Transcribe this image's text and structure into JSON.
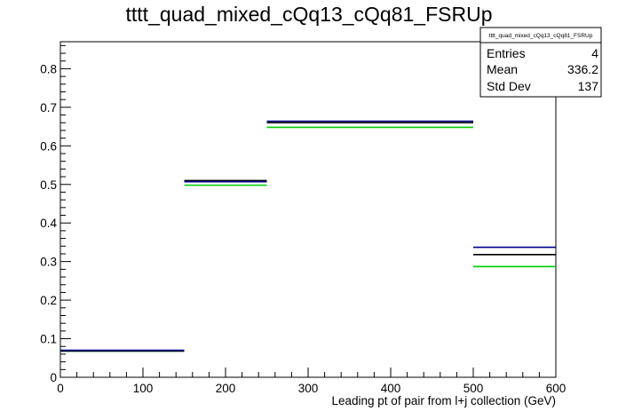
{
  "chart_data": {
    "type": "line",
    "title": "tttt_quad_mixed_cQq13_cQq81_FSRUp",
    "xlabel": "Leading pt of pair from l+j collection (GeV)",
    "ylabel": "",
    "xlim": [
      0,
      600
    ],
    "ylim": [
      0,
      0.87
    ],
    "x_ticks": [
      "0",
      "100",
      "200",
      "300",
      "400",
      "500",
      "600"
    ],
    "y_ticks": [
      "0",
      "0.1",
      "0.2",
      "0.3",
      "0.4",
      "0.5",
      "0.6",
      "0.7",
      "0.8"
    ],
    "bin_edges": [
      0,
      150,
      250,
      500,
      600
    ],
    "series": [
      {
        "color": "#000000",
        "values": [
          0.068,
          0.51,
          0.66,
          0.318
        ]
      },
      {
        "color": "#00008b",
        "values": [
          0.07,
          0.507,
          0.664,
          0.337
        ]
      },
      {
        "color": "#00cc00",
        "values": [
          0.068,
          0.498,
          0.648,
          0.287
        ]
      }
    ],
    "stats_box": {
      "title": "tttt_quad_mixed_cQq13_cQq81_FSRUp",
      "rows": [
        {
          "label": "Entries",
          "value": "4"
        },
        {
          "label": "Mean",
          "value": "336.2"
        },
        {
          "label": "Std Dev",
          "value": "137"
        }
      ]
    },
    "grid": false,
    "legend": "none"
  }
}
